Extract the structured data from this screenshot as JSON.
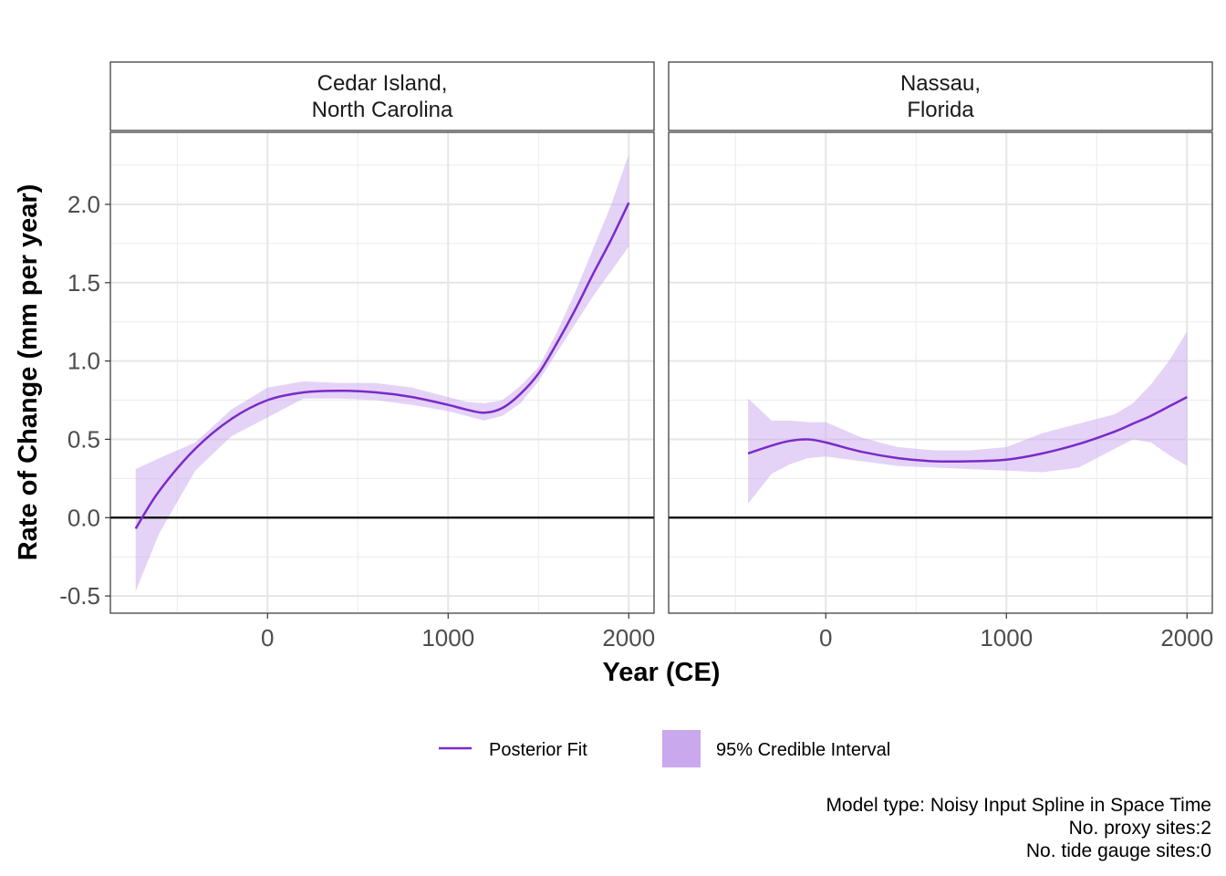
{
  "chart_data": {
    "type": "line",
    "xlabel": "Year (CE)",
    "ylabel": "Rate of Change (mm per year)",
    "xlim": [
      -870,
      2140
    ],
    "ylim": [
      -0.61,
      2.46
    ],
    "x_ticks": [
      0,
      1000,
      2000
    ],
    "x_tick_labels": [
      "0",
      "1000",
      "2000"
    ],
    "y_ticks": [
      -0.5,
      0.0,
      0.5,
      1.0,
      1.5,
      2.0
    ],
    "y_tick_labels": [
      "-0.5",
      "0.0",
      "0.5",
      "1.0",
      "1.5",
      "2.0"
    ],
    "reference_line_y": 0,
    "grid": true,
    "colors": {
      "fit": "#7B2AC9",
      "interval": "#C9A8EE",
      "interval_opacity": 0.5
    },
    "legend": {
      "position": "bottom",
      "items": [
        {
          "label": "Posterior Fit",
          "kind": "line"
        },
        {
          "label": "95% Credible Interval",
          "kind": "fill"
        }
      ]
    },
    "caption": [
      "Model type: Noisy Input Spline in Space Time",
      "No. proxy sites:2",
      "No. tide gauge sites:0"
    ],
    "panels": [
      {
        "strip": [
          "Cedar Island,",
          "North Carolina"
        ],
        "x": [
          -730,
          -600,
          -400,
          -200,
          0,
          200,
          400,
          600,
          800,
          1000,
          1100,
          1200,
          1300,
          1400,
          1500,
          1600,
          1700,
          1800,
          1900,
          2000
        ],
        "fit": [
          -0.07,
          0.17,
          0.44,
          0.63,
          0.75,
          0.8,
          0.81,
          0.8,
          0.77,
          0.72,
          0.69,
          0.67,
          0.7,
          0.79,
          0.92,
          1.11,
          1.32,
          1.55,
          1.77,
          2.01
        ],
        "lower": [
          -0.47,
          -0.1,
          0.3,
          0.52,
          0.64,
          0.76,
          0.76,
          0.75,
          0.72,
          0.68,
          0.65,
          0.62,
          0.65,
          0.73,
          0.87,
          1.05,
          1.23,
          1.41,
          1.57,
          1.73
        ],
        "upper": [
          0.31,
          0.38,
          0.48,
          0.69,
          0.83,
          0.87,
          0.86,
          0.86,
          0.83,
          0.77,
          0.74,
          0.73,
          0.75,
          0.84,
          0.96,
          1.18,
          1.43,
          1.71,
          1.99,
          2.32
        ]
      },
      {
        "strip": [
          "Nassau,",
          "Florida"
        ],
        "x": [
          -430,
          -300,
          -200,
          -100,
          0,
          200,
          400,
          600,
          800,
          1000,
          1200,
          1400,
          1600,
          1700,
          1800,
          1900,
          2000
        ],
        "fit": [
          0.41,
          0.46,
          0.49,
          0.5,
          0.48,
          0.42,
          0.38,
          0.36,
          0.36,
          0.37,
          0.41,
          0.47,
          0.55,
          0.6,
          0.65,
          0.71,
          0.77
        ],
        "lower": [
          0.09,
          0.28,
          0.34,
          0.38,
          0.39,
          0.36,
          0.33,
          0.32,
          0.31,
          0.3,
          0.29,
          0.32,
          0.44,
          0.5,
          0.48,
          0.4,
          0.33
        ],
        "upper": [
          0.76,
          0.62,
          0.62,
          0.61,
          0.61,
          0.51,
          0.45,
          0.43,
          0.43,
          0.45,
          0.54,
          0.6,
          0.66,
          0.73,
          0.85,
          1.0,
          1.19
        ]
      }
    ]
  }
}
